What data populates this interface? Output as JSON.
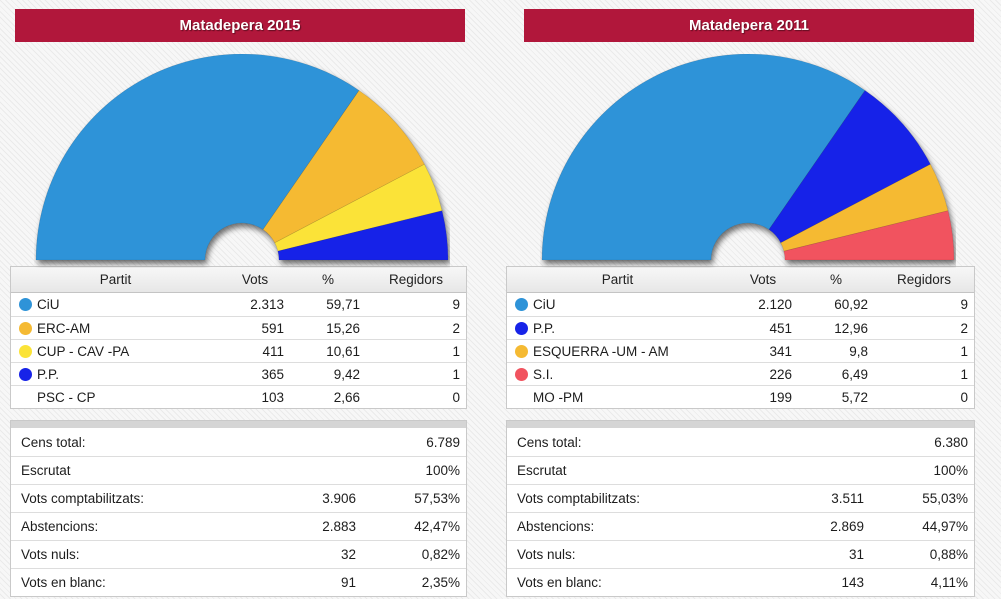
{
  "theme": {
    "title_bar_bg": "#B1173B",
    "title_text_color": "#FFFFFF",
    "party_colors": {
      "ciu_blue": "#2E93D8",
      "pp_blue": "#1723E8",
      "erc_esquerra_amber": "#F5BA33",
      "cup_yellow": "#FBE337",
      "si_red": "#F1535F"
    }
  },
  "panels": [
    {
      "title": "Matadepera 2015",
      "table": {
        "headers": [
          "Partit",
          "Vots",
          "%",
          "Regidors"
        ],
        "rows": [
          {
            "party": "CiU",
            "color": "#2E93D8",
            "vots": "2.313",
            "pct": "59,71",
            "regidors": "9"
          },
          {
            "party": "ERC-AM",
            "color": "#F5BA33",
            "vots": "591",
            "pct": "15,26",
            "regidors": "2"
          },
          {
            "party": "CUP - CAV -PA",
            "color": "#FBE337",
            "vots": "411",
            "pct": "10,61",
            "regidors": "1"
          },
          {
            "party": "P.P.",
            "color": "#1723E8",
            "vots": "365",
            "pct": "9,42",
            "regidors": "1"
          },
          {
            "party": "PSC - CP",
            "color": null,
            "vots": "103",
            "pct": "2,66",
            "regidors": "0"
          }
        ]
      },
      "summary": [
        {
          "label": "Cens total:",
          "value": "",
          "pct": "6.789"
        },
        {
          "label": "Escrutat",
          "value": "",
          "pct": "100%"
        },
        {
          "label": "Vots comptabilitzats:",
          "value": "3.906",
          "pct": "57,53%"
        },
        {
          "label": "Abstencions:",
          "value": "2.883",
          "pct": "42,47%"
        },
        {
          "label": "Vots nuls:",
          "value": "32",
          "pct": "0,82%"
        },
        {
          "label": "Vots en blanc:",
          "value": "91",
          "pct": "2,35%"
        }
      ]
    },
    {
      "title": "Matadepera 2011",
      "table": {
        "headers": [
          "Partit",
          "Vots",
          "%",
          "Regidors"
        ],
        "rows": [
          {
            "party": "CiU",
            "color": "#2E93D8",
            "vots": "2.120",
            "pct": "60,92",
            "regidors": "9"
          },
          {
            "party": "P.P.",
            "color": "#1723E8",
            "vots": "451",
            "pct": "12,96",
            "regidors": "2"
          },
          {
            "party": "ESQUERRA -UM - AM",
            "color": "#F5BA33",
            "vots": "341",
            "pct": "9,8",
            "regidors": "1"
          },
          {
            "party": "S.I.",
            "color": "#F1535F",
            "vots": "226",
            "pct": "6,49",
            "regidors": "1"
          },
          {
            "party": "MO -PM",
            "color": null,
            "vots": "199",
            "pct": "5,72",
            "regidors": "0"
          }
        ]
      },
      "summary": [
        {
          "label": "Cens total:",
          "value": "",
          "pct": "6.380"
        },
        {
          "label": "Escrutat",
          "value": "",
          "pct": "100%"
        },
        {
          "label": "Vots comptabilitzats:",
          "value": "3.511",
          "pct": "55,03%"
        },
        {
          "label": "Abstencions:",
          "value": "2.869",
          "pct": "44,97%"
        },
        {
          "label": "Vots nuls:",
          "value": "31",
          "pct": "0,88%"
        },
        {
          "label": "Vots en blanc:",
          "value": "143",
          "pct": "4,11%"
        }
      ]
    }
  ],
  "chart_data": [
    {
      "type": "half-donut",
      "title": "Matadepera 2015 — Regidors (council seats)",
      "categories": [
        "CiU",
        "ERC-AM",
        "CUP - CAV -PA",
        "P.P."
      ],
      "values": [
        9,
        2,
        1,
        1
      ],
      "colors": [
        "#2E93D8",
        "#F5BA33",
        "#FBE337",
        "#1723E8"
      ],
      "start_angle_deg": 180,
      "end_angle_deg": 0,
      "inner_radius_ratio": 0.18,
      "legend_position": "table-below",
      "note": "Slices proportional to seats; PSC - CP (0 seats) not drawn"
    },
    {
      "type": "half-donut",
      "title": "Matadepera 2011 — Regidors (council seats)",
      "categories": [
        "CiU",
        "P.P.",
        "ESQUERRA -UM - AM",
        "S.I."
      ],
      "values": [
        9,
        2,
        1,
        1
      ],
      "colors": [
        "#2E93D8",
        "#1723E8",
        "#F5BA33",
        "#F1535F"
      ],
      "start_angle_deg": 180,
      "end_angle_deg": 0,
      "inner_radius_ratio": 0.18,
      "legend_position": "table-below",
      "note": "Slices proportional to seats; MO -PM (0 seats) not drawn"
    }
  ]
}
